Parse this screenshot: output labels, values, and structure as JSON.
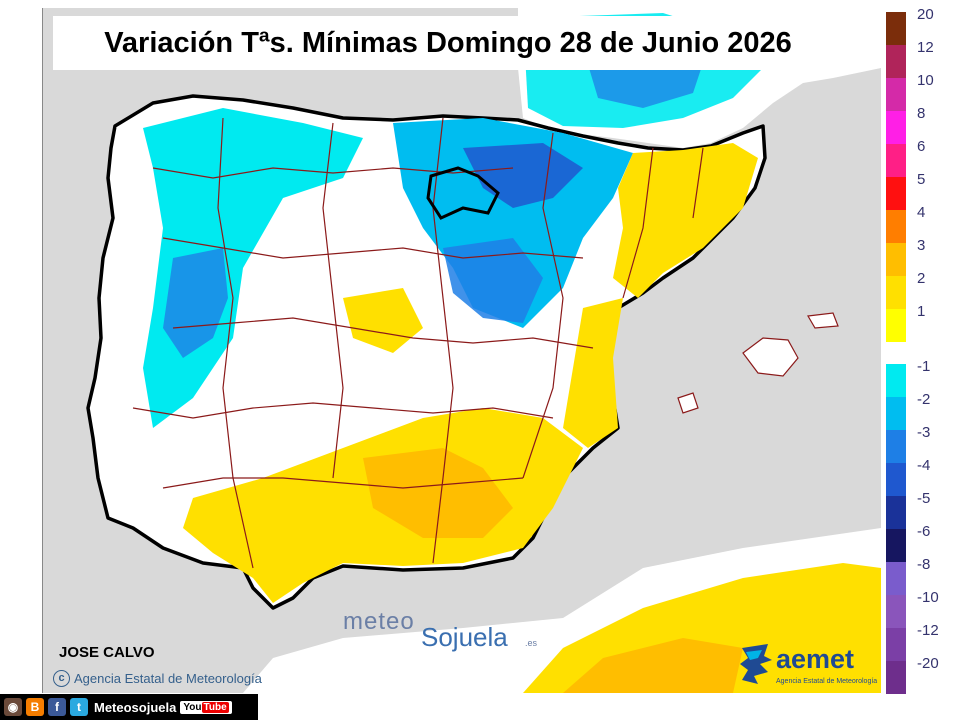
{
  "title": "Variación Tªs. Mínimas Domingo 28 de Junio 2026",
  "author": "JOSE CALVO",
  "copyright": "Agencia Estatal de Meteorología",
  "watermark": {
    "meteo": "meteo",
    "sojuela": "Sojuela",
    "es": ".es"
  },
  "aemet": {
    "name": "aemet",
    "subtitle": "Agencia Estatal de Meteorología"
  },
  "legend": {
    "positive": [
      {
        "label": "20",
        "color": "#7b2d0b"
      },
      {
        "label": "12",
        "color": "#b0245a"
      },
      {
        "label": "10",
        "color": "#d42aa8"
      },
      {
        "label": "8",
        "color": "#ff1fe6"
      },
      {
        "label": "6",
        "color": "#ff1f86"
      },
      {
        "label": "5",
        "color": "#ff1010"
      },
      {
        "label": "4",
        "color": "#ff7e00"
      },
      {
        "label": "3",
        "color": "#ffbe00"
      },
      {
        "label": "2",
        "color": "#ffe000"
      },
      {
        "label": "1",
        "color": "#ffff00"
      }
    ],
    "negative": [
      {
        "label": "-1",
        "color": "#00eaf0"
      },
      {
        "label": "-2",
        "color": "#00bdf0"
      },
      {
        "label": "-3",
        "color": "#1e7fe6"
      },
      {
        "label": "-4",
        "color": "#1f58cf"
      },
      {
        "label": "-5",
        "color": "#1a3299"
      },
      {
        "label": "-6",
        "color": "#161660"
      },
      {
        "label": "-8",
        "color": "#7a5ccc"
      },
      {
        "label": "-10",
        "color": "#8a55bb"
      },
      {
        "label": "-12",
        "color": "#7b3fa6"
      },
      {
        "label": "-20",
        "color": "#6e2e8c"
      }
    ]
  },
  "map": {
    "sea_color": "#d9d9d9",
    "land_color": "#ffffff",
    "border_color": "#8b1a1a",
    "coast_color": "#000000"
  },
  "bottom_bar": {
    "icons": [
      {
        "name": "instagram-icon",
        "glyph": "◉",
        "color": "#6b4a3a"
      },
      {
        "name": "blogger-icon",
        "glyph": "B",
        "color": "#f57d00"
      },
      {
        "name": "facebook-icon",
        "glyph": "f",
        "color": "#3b5998"
      },
      {
        "name": "twitter-icon",
        "glyph": "t",
        "color": "#2aa9e0"
      }
    ],
    "text": "Meteosojuela",
    "youtube_you": "You",
    "youtube_tube": "Tube"
  }
}
